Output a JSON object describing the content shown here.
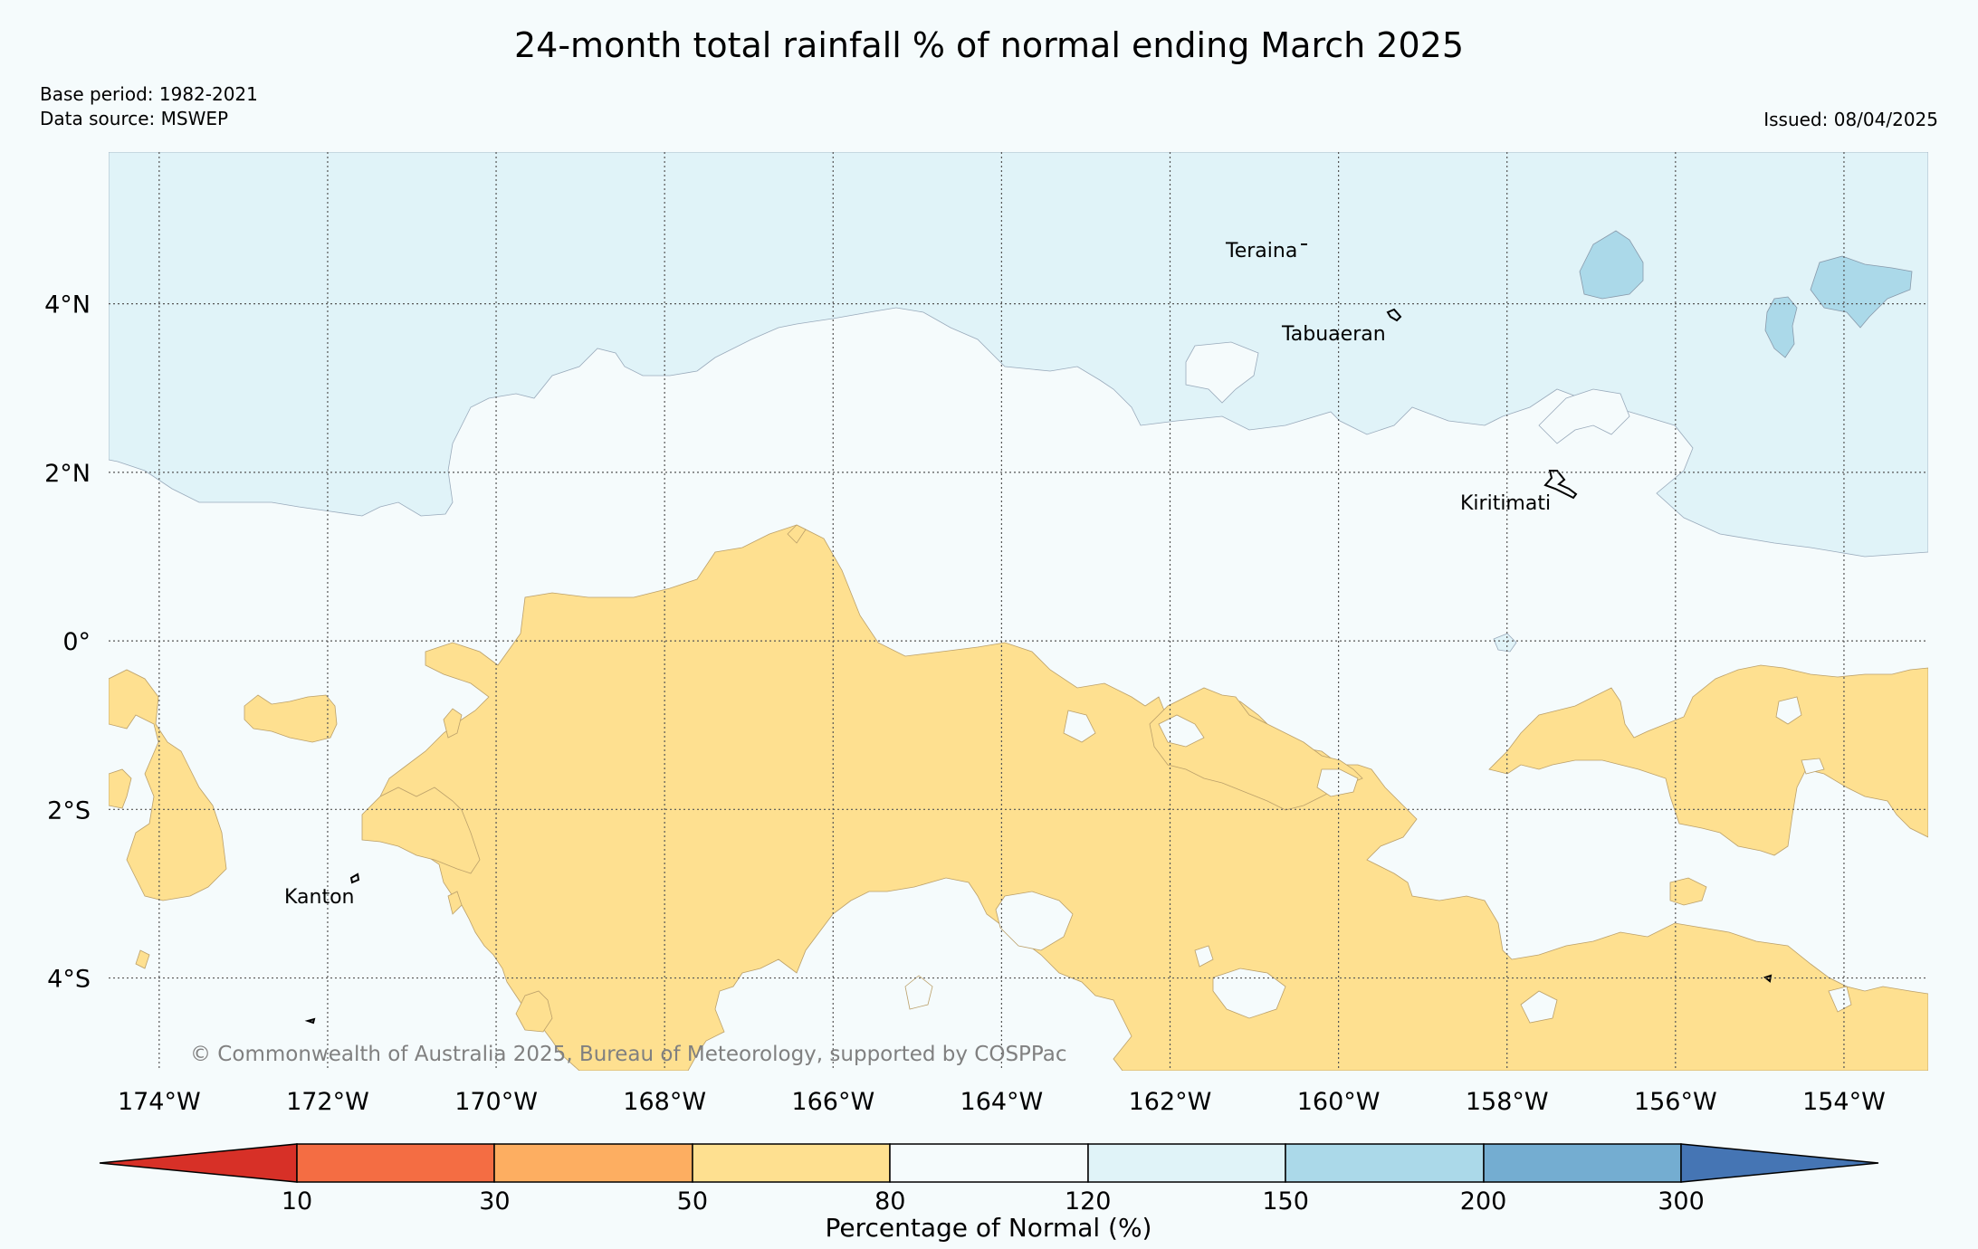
{
  "title": "24-month total rainfall % of normal ending March 2025",
  "base_period": "Base period: 1982-2021",
  "data_source": "Data source: MSWEP",
  "issued": "Issued: 08/04/2025",
  "copyright": "© Commonwealth of Australia 2025, Bureau of Meteorology, supported by COSPPac",
  "map": {
    "lon_range": [
      -174.6,
      -153.0
    ],
    "lat_range": [
      -5.1,
      5.8
    ],
    "lat_ticks": [
      {
        "value": 4,
        "label": "4°N"
      },
      {
        "value": 2,
        "label": "2°N"
      },
      {
        "value": 0,
        "label": "0°"
      },
      {
        "value": -2,
        "label": "2°S"
      },
      {
        "value": -4,
        "label": "4°S"
      }
    ],
    "lon_ticks": [
      {
        "value": -174,
        "label": "174°W"
      },
      {
        "value": -172,
        "label": "172°W"
      },
      {
        "value": -170,
        "label": "170°W"
      },
      {
        "value": -168,
        "label": "168°W"
      },
      {
        "value": -166,
        "label": "166°W"
      },
      {
        "value": -164,
        "label": "164°W"
      },
      {
        "value": -162,
        "label": "162°W"
      },
      {
        "value": -160,
        "label": "160°W"
      },
      {
        "value": -158,
        "label": "158°W"
      },
      {
        "value": -156,
        "label": "156°W"
      },
      {
        "value": -154,
        "label": "154°W"
      }
    ],
    "places": [
      {
        "name": "Teraina"
      },
      {
        "name": "Tabuaeran"
      },
      {
        "name": "Kiritimati"
      },
      {
        "name": "Kanton"
      }
    ]
  },
  "colorbar": {
    "label": "Percentage of Normal (%)",
    "ticks": [
      "10",
      "30",
      "50",
      "80",
      "120",
      "150",
      "200",
      "300"
    ],
    "colors": [
      "#d73027",
      "#f46d43",
      "#fdae61",
      "#fee090",
      "#f5fbfc",
      "#e0f3f8",
      "#abd9e9",
      "#74add1",
      "#4575b4"
    ]
  },
  "colors": {
    "below_normal_fill": "#fee090",
    "above_normal_fill": "#e0f3f8",
    "well_above_fill": "#abd9e9",
    "normal_fill": "#f5fbfc",
    "gridline": "#555555"
  }
}
